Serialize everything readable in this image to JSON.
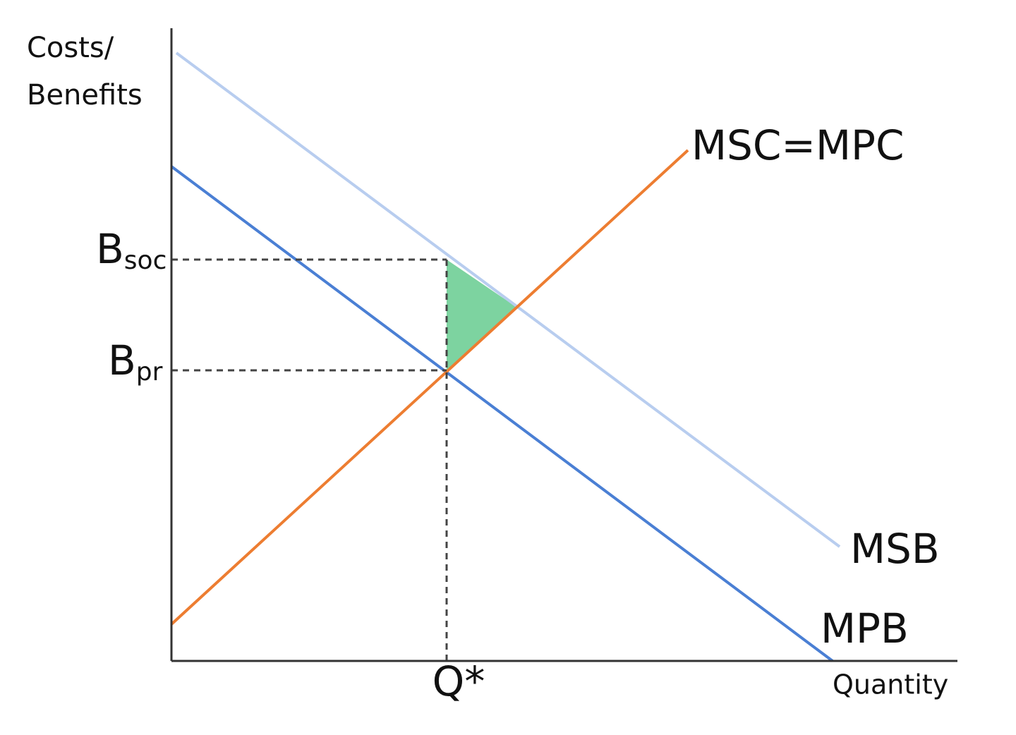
{
  "y_axis": {
    "label_lines": [
      "Costs/",
      "Benefits"
    ]
  },
  "x_axis": {
    "label": "Quantity"
  },
  "curves": {
    "supply": "MSC=MPC",
    "social_benefit": "MSB",
    "private_benefit": "MPB"
  },
  "levels": {
    "social": {
      "main": "B",
      "sub": "soc"
    },
    "private": {
      "main": "B",
      "sub": "pr"
    },
    "quantity": "Q*"
  }
}
